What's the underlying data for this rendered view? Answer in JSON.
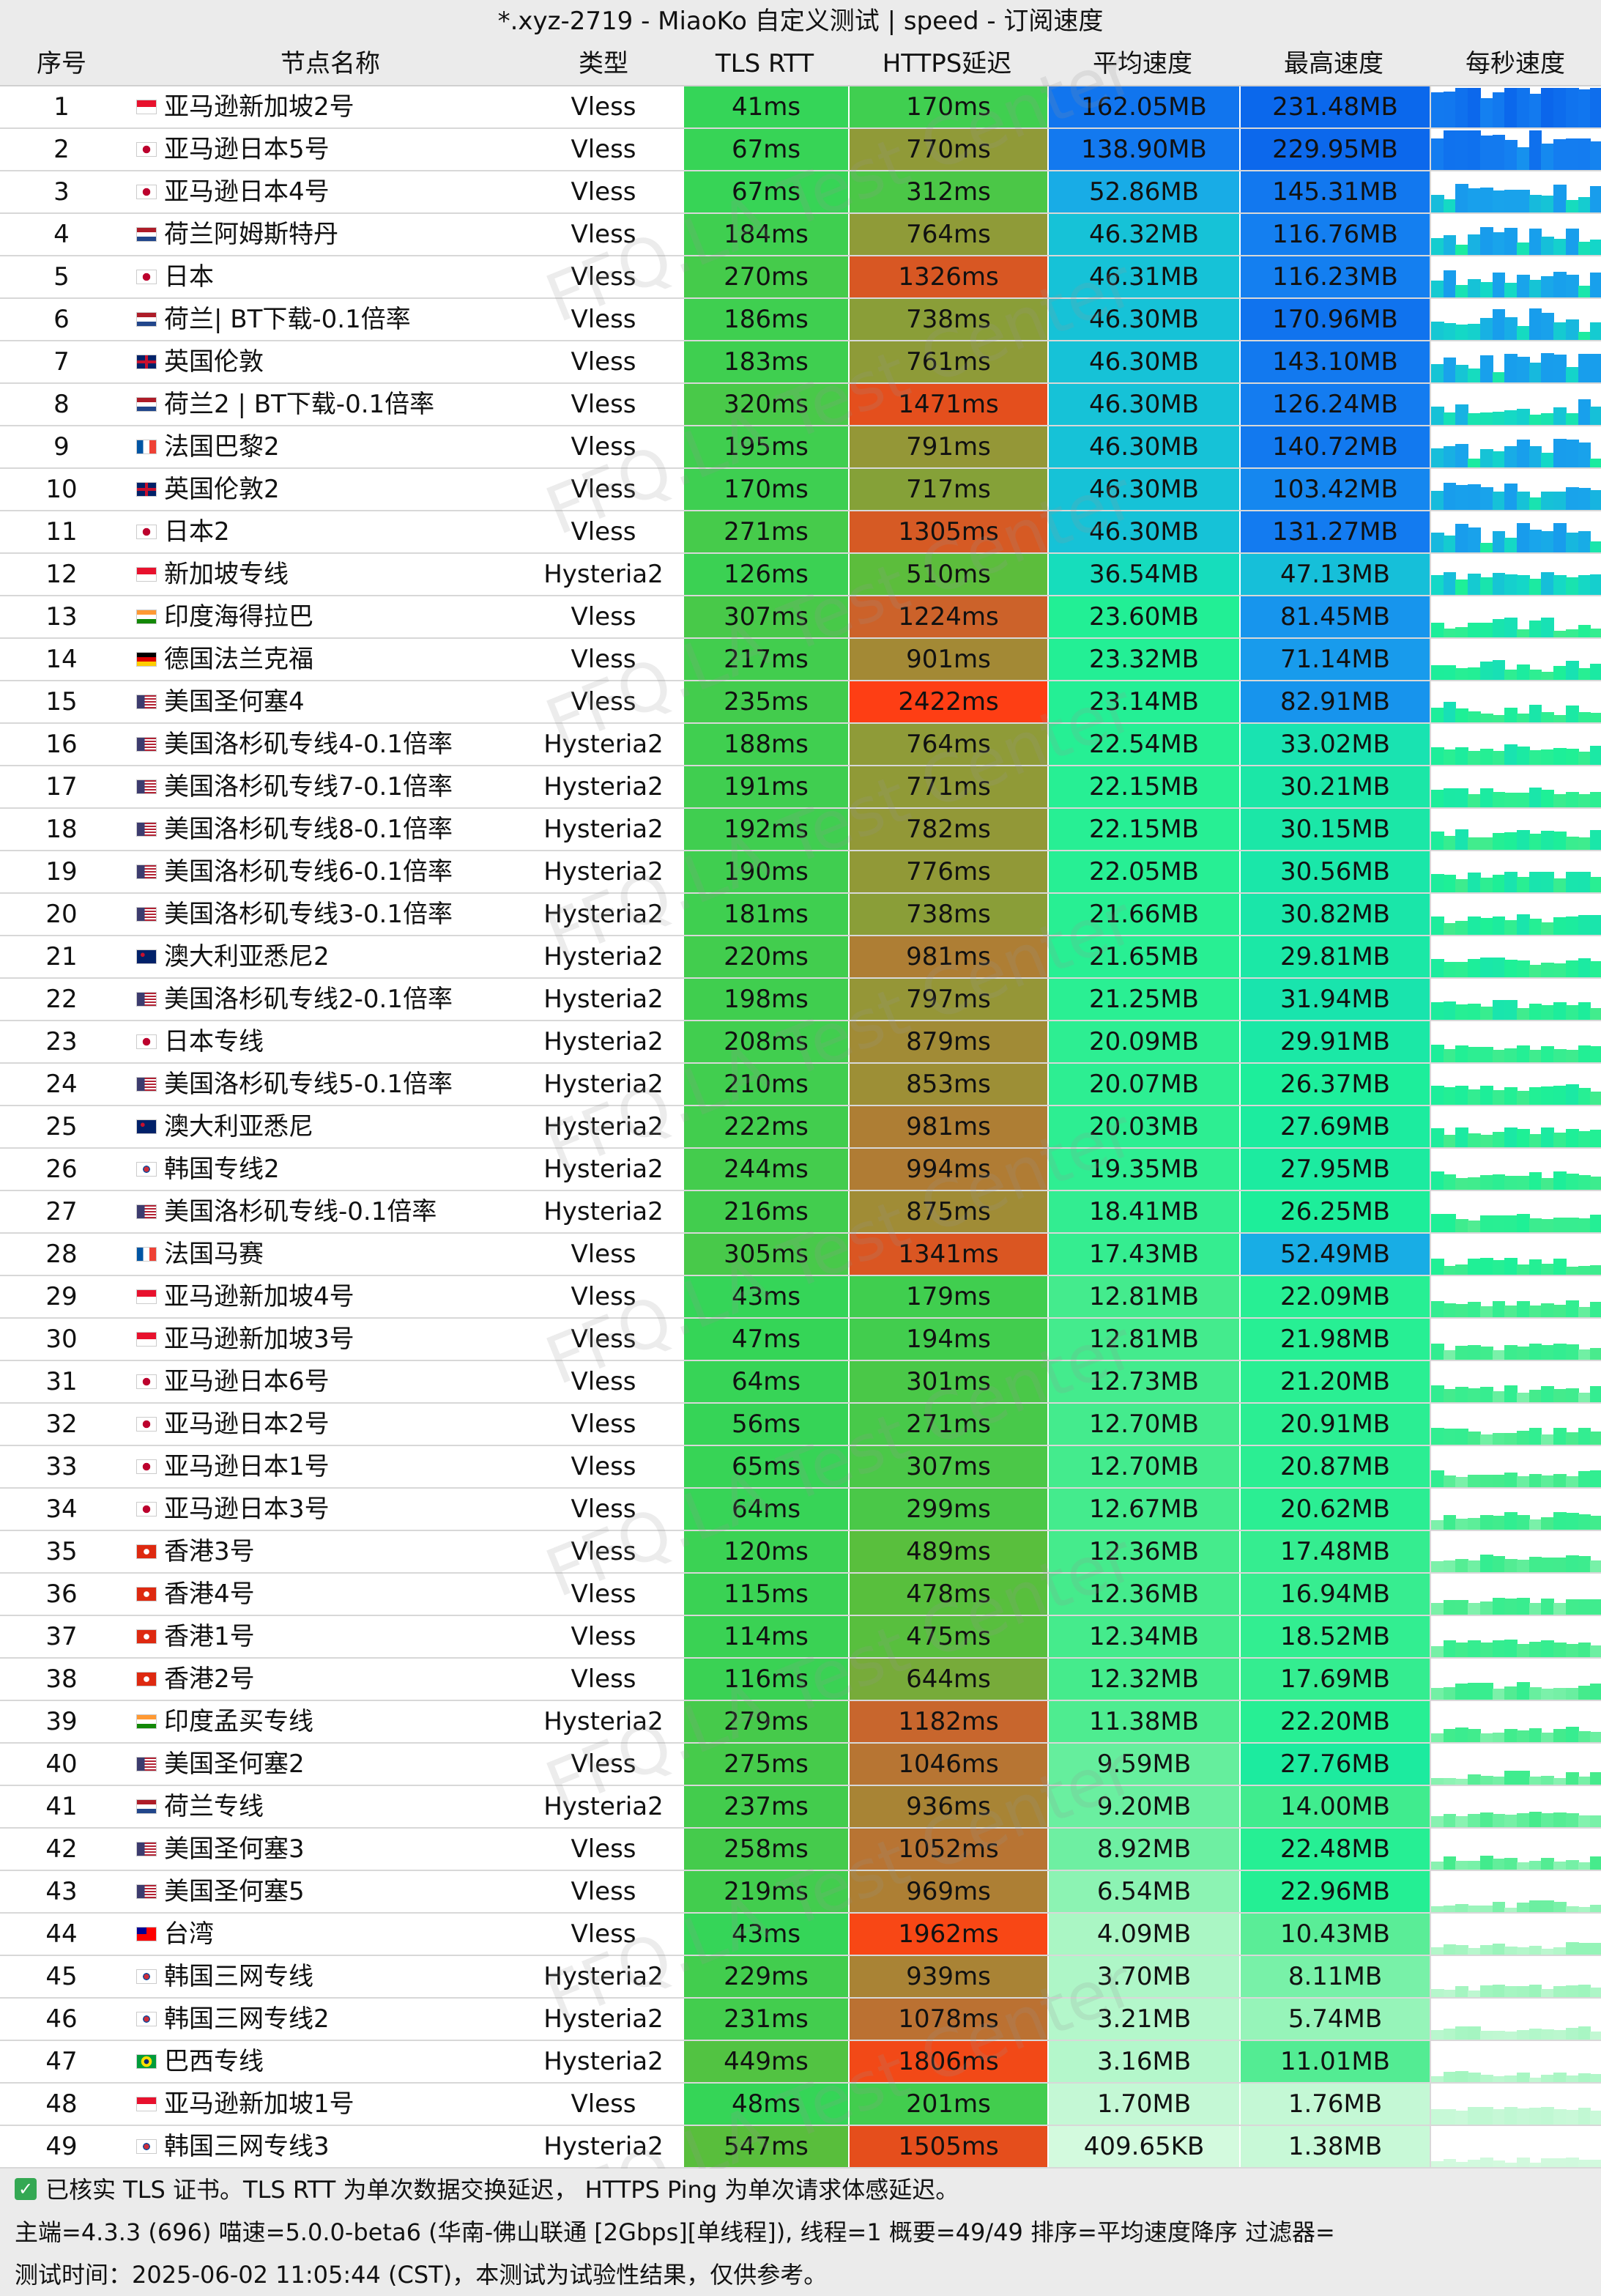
{
  "title": "*.xyz-2719 - MiaoKo 自定义测试 | speed - 订阅速度",
  "columns": [
    "序号",
    "节点名称",
    "类型",
    "TLS RTT",
    "HTTPS延迟",
    "平均速度",
    "最高速度",
    "每秒速度"
  ],
  "watermark": "FFQ.LA Test Center",
  "rows": [
    {
      "idx": "1",
      "flag": "sg",
      "name": "亚马逊新加坡2号",
      "type": "Vless",
      "tls": "41ms",
      "https": "170ms",
      "avg": "162.05MB",
      "max": "231.48MB"
    },
    {
      "idx": "2",
      "flag": "jp",
      "name": "亚马逊日本5号",
      "type": "Vless",
      "tls": "67ms",
      "https": "770ms",
      "avg": "138.90MB",
      "max": "229.95MB"
    },
    {
      "idx": "3",
      "flag": "jp",
      "name": "亚马逊日本4号",
      "type": "Vless",
      "tls": "67ms",
      "https": "312ms",
      "avg": "52.86MB",
      "max": "145.31MB"
    },
    {
      "idx": "4",
      "flag": "nl",
      "name": "荷兰阿姆斯特丹",
      "type": "Vless",
      "tls": "184ms",
      "https": "764ms",
      "avg": "46.32MB",
      "max": "116.76MB"
    },
    {
      "idx": "5",
      "flag": "jp",
      "name": "日本",
      "type": "Vless",
      "tls": "270ms",
      "https": "1326ms",
      "avg": "46.31MB",
      "max": "116.23MB"
    },
    {
      "idx": "6",
      "flag": "nl",
      "name": "荷兰| BT下载-0.1倍率",
      "type": "Vless",
      "tls": "186ms",
      "https": "738ms",
      "avg": "46.30MB",
      "max": "170.96MB"
    },
    {
      "idx": "7",
      "flag": "gb",
      "name": "英国伦敦",
      "type": "Vless",
      "tls": "183ms",
      "https": "761ms",
      "avg": "46.30MB",
      "max": "143.10MB"
    },
    {
      "idx": "8",
      "flag": "nl",
      "name": "荷兰2 | BT下载-0.1倍率",
      "type": "Vless",
      "tls": "320ms",
      "https": "1471ms",
      "avg": "46.30MB",
      "max": "126.24MB"
    },
    {
      "idx": "9",
      "flag": "fr",
      "name": "法国巴黎2",
      "type": "Vless",
      "tls": "195ms",
      "https": "791ms",
      "avg": "46.30MB",
      "max": "140.72MB"
    },
    {
      "idx": "10",
      "flag": "gb",
      "name": "英国伦敦2",
      "type": "Vless",
      "tls": "170ms",
      "https": "717ms",
      "avg": "46.30MB",
      "max": "103.42MB"
    },
    {
      "idx": "11",
      "flag": "jp",
      "name": "日本2",
      "type": "Vless",
      "tls": "271ms",
      "https": "1305ms",
      "avg": "46.30MB",
      "max": "131.27MB"
    },
    {
      "idx": "12",
      "flag": "sg",
      "name": "新加坡专线",
      "type": "Hysteria2",
      "tls": "126ms",
      "https": "510ms",
      "avg": "36.54MB",
      "max": "47.13MB"
    },
    {
      "idx": "13",
      "flag": "in",
      "name": "印度海得拉巴",
      "type": "Vless",
      "tls": "307ms",
      "https": "1224ms",
      "avg": "23.60MB",
      "max": "81.45MB"
    },
    {
      "idx": "14",
      "flag": "de",
      "name": "德国法兰克福",
      "type": "Vless",
      "tls": "217ms",
      "https": "901ms",
      "avg": "23.32MB",
      "max": "71.14MB"
    },
    {
      "idx": "15",
      "flag": "us",
      "name": "美国圣何塞4",
      "type": "Vless",
      "tls": "235ms",
      "https": "2422ms",
      "avg": "23.14MB",
      "max": "82.91MB"
    },
    {
      "idx": "16",
      "flag": "us",
      "name": "美国洛杉矶专线4-0.1倍率",
      "type": "Hysteria2",
      "tls": "188ms",
      "https": "764ms",
      "avg": "22.54MB",
      "max": "33.02MB"
    },
    {
      "idx": "17",
      "flag": "us",
      "name": "美国洛杉矶专线7-0.1倍率",
      "type": "Hysteria2",
      "tls": "191ms",
      "https": "771ms",
      "avg": "22.15MB",
      "max": "30.21MB"
    },
    {
      "idx": "18",
      "flag": "us",
      "name": "美国洛杉矶专线8-0.1倍率",
      "type": "Hysteria2",
      "tls": "192ms",
      "https": "782ms",
      "avg": "22.15MB",
      "max": "30.15MB"
    },
    {
      "idx": "19",
      "flag": "us",
      "name": "美国洛杉矶专线6-0.1倍率",
      "type": "Hysteria2",
      "tls": "190ms",
      "https": "776ms",
      "avg": "22.05MB",
      "max": "30.56MB"
    },
    {
      "idx": "20",
      "flag": "us",
      "name": "美国洛杉矶专线3-0.1倍率",
      "type": "Hysteria2",
      "tls": "181ms",
      "https": "738ms",
      "avg": "21.66MB",
      "max": "30.82MB"
    },
    {
      "idx": "21",
      "flag": "au",
      "name": "澳大利亚悉尼2",
      "type": "Hysteria2",
      "tls": "220ms",
      "https": "981ms",
      "avg": "21.65MB",
      "max": "29.81MB"
    },
    {
      "idx": "22",
      "flag": "us",
      "name": "美国洛杉矶专线2-0.1倍率",
      "type": "Hysteria2",
      "tls": "198ms",
      "https": "797ms",
      "avg": "21.25MB",
      "max": "31.94MB"
    },
    {
      "idx": "23",
      "flag": "jp",
      "name": "日本专线",
      "type": "Hysteria2",
      "tls": "208ms",
      "https": "879ms",
      "avg": "20.09MB",
      "max": "29.91MB"
    },
    {
      "idx": "24",
      "flag": "us",
      "name": "美国洛杉矶专线5-0.1倍率",
      "type": "Hysteria2",
      "tls": "210ms",
      "https": "853ms",
      "avg": "20.07MB",
      "max": "26.37MB"
    },
    {
      "idx": "25",
      "flag": "au",
      "name": "澳大利亚悉尼",
      "type": "Hysteria2",
      "tls": "222ms",
      "https": "981ms",
      "avg": "20.03MB",
      "max": "27.69MB"
    },
    {
      "idx": "26",
      "flag": "kr",
      "name": "韩国专线2",
      "type": "Hysteria2",
      "tls": "244ms",
      "https": "994ms",
      "avg": "19.35MB",
      "max": "27.95MB"
    },
    {
      "idx": "27",
      "flag": "us",
      "name": "美国洛杉矶专线-0.1倍率",
      "type": "Hysteria2",
      "tls": "216ms",
      "https": "875ms",
      "avg": "18.41MB",
      "max": "26.25MB"
    },
    {
      "idx": "28",
      "flag": "fr",
      "name": "法国马赛",
      "type": "Vless",
      "tls": "305ms",
      "https": "1341ms",
      "avg": "17.43MB",
      "max": "52.49MB"
    },
    {
      "idx": "29",
      "flag": "sg",
      "name": "亚马逊新加坡4号",
      "type": "Vless",
      "tls": "43ms",
      "https": "179ms",
      "avg": "12.81MB",
      "max": "22.09MB"
    },
    {
      "idx": "30",
      "flag": "sg",
      "name": "亚马逊新加坡3号",
      "type": "Vless",
      "tls": "47ms",
      "https": "194ms",
      "avg": "12.81MB",
      "max": "21.98MB"
    },
    {
      "idx": "31",
      "flag": "jp",
      "name": "亚马逊日本6号",
      "type": "Vless",
      "tls": "64ms",
      "https": "301ms",
      "avg": "12.73MB",
      "max": "21.20MB"
    },
    {
      "idx": "32",
      "flag": "jp",
      "name": "亚马逊日本2号",
      "type": "Vless",
      "tls": "56ms",
      "https": "271ms",
      "avg": "12.70MB",
      "max": "20.91MB"
    },
    {
      "idx": "33",
      "flag": "jp",
      "name": "亚马逊日本1号",
      "type": "Vless",
      "tls": "65ms",
      "https": "307ms",
      "avg": "12.70MB",
      "max": "20.87MB"
    },
    {
      "idx": "34",
      "flag": "jp",
      "name": "亚马逊日本3号",
      "type": "Vless",
      "tls": "64ms",
      "https": "299ms",
      "avg": "12.67MB",
      "max": "20.62MB"
    },
    {
      "idx": "35",
      "flag": "hk",
      "name": "香港3号",
      "type": "Vless",
      "tls": "120ms",
      "https": "489ms",
      "avg": "12.36MB",
      "max": "17.48MB"
    },
    {
      "idx": "36",
      "flag": "hk",
      "name": "香港4号",
      "type": "Vless",
      "tls": "115ms",
      "https": "478ms",
      "avg": "12.36MB",
      "max": "16.94MB"
    },
    {
      "idx": "37",
      "flag": "hk",
      "name": "香港1号",
      "type": "Vless",
      "tls": "114ms",
      "https": "475ms",
      "avg": "12.34MB",
      "max": "18.52MB"
    },
    {
      "idx": "38",
      "flag": "hk",
      "name": "香港2号",
      "type": "Vless",
      "tls": "116ms",
      "https": "644ms",
      "avg": "12.32MB",
      "max": "17.69MB"
    },
    {
      "idx": "39",
      "flag": "in",
      "name": "印度孟买专线",
      "type": "Hysteria2",
      "tls": "279ms",
      "https": "1182ms",
      "avg": "11.38MB",
      "max": "22.20MB"
    },
    {
      "idx": "40",
      "flag": "us",
      "name": "美国圣何塞2",
      "type": "Vless",
      "tls": "275ms",
      "https": "1046ms",
      "avg": "9.59MB",
      "max": "27.76MB"
    },
    {
      "idx": "41",
      "flag": "nl",
      "name": "荷兰专线",
      "type": "Hysteria2",
      "tls": "237ms",
      "https": "936ms",
      "avg": "9.20MB",
      "max": "14.00MB"
    },
    {
      "idx": "42",
      "flag": "us",
      "name": "美国圣何塞3",
      "type": "Vless",
      "tls": "258ms",
      "https": "1052ms",
      "avg": "8.92MB",
      "max": "22.48MB"
    },
    {
      "idx": "43",
      "flag": "us",
      "name": "美国圣何塞5",
      "type": "Vless",
      "tls": "219ms",
      "https": "969ms",
      "avg": "6.54MB",
      "max": "22.96MB"
    },
    {
      "idx": "44",
      "flag": "tw",
      "name": "台湾",
      "type": "Vless",
      "tls": "43ms",
      "https": "1962ms",
      "avg": "4.09MB",
      "max": "10.43MB"
    },
    {
      "idx": "45",
      "flag": "kr",
      "name": "韩国三网专线",
      "type": "Hysteria2",
      "tls": "229ms",
      "https": "939ms",
      "avg": "3.70MB",
      "max": "8.11MB"
    },
    {
      "idx": "46",
      "flag": "kr",
      "name": "韩国三网专线2",
      "type": "Hysteria2",
      "tls": "231ms",
      "https": "1078ms",
      "avg": "3.21MB",
      "max": "5.74MB"
    },
    {
      "idx": "47",
      "flag": "br",
      "name": "巴西专线",
      "type": "Hysteria2",
      "tls": "449ms",
      "https": "1806ms",
      "avg": "3.16MB",
      "max": "11.01MB"
    },
    {
      "idx": "48",
      "flag": "sg",
      "name": "亚马逊新加坡1号",
      "type": "Vless",
      "tls": "48ms",
      "https": "201ms",
      "avg": "1.70MB",
      "max": "1.76MB"
    },
    {
      "idx": "49",
      "flag": "kr",
      "name": "韩国三网专线3",
      "type": "Hysteria2",
      "tls": "547ms",
      "https": "1505ms",
      "avg": "409.65KB",
      "max": "1.38MB"
    }
  ],
  "footer": {
    "line1": "已核实 TLS 证书。TLS RTT 为单次数据交换延迟， HTTPS Ping 为单次请求体感延迟。",
    "line2": "主端=4.3.3 (696) 喵速=5.0.0-beta6 (华南-佛山联通 [2Gbps][单线程]), 线程=1 概要=49/49 排序=平均速度降序 过滤器=",
    "line3": "测试时间：2025-06-02 11:05:44 (CST)，本测试为试验性结果，仅供参考。"
  }
}
